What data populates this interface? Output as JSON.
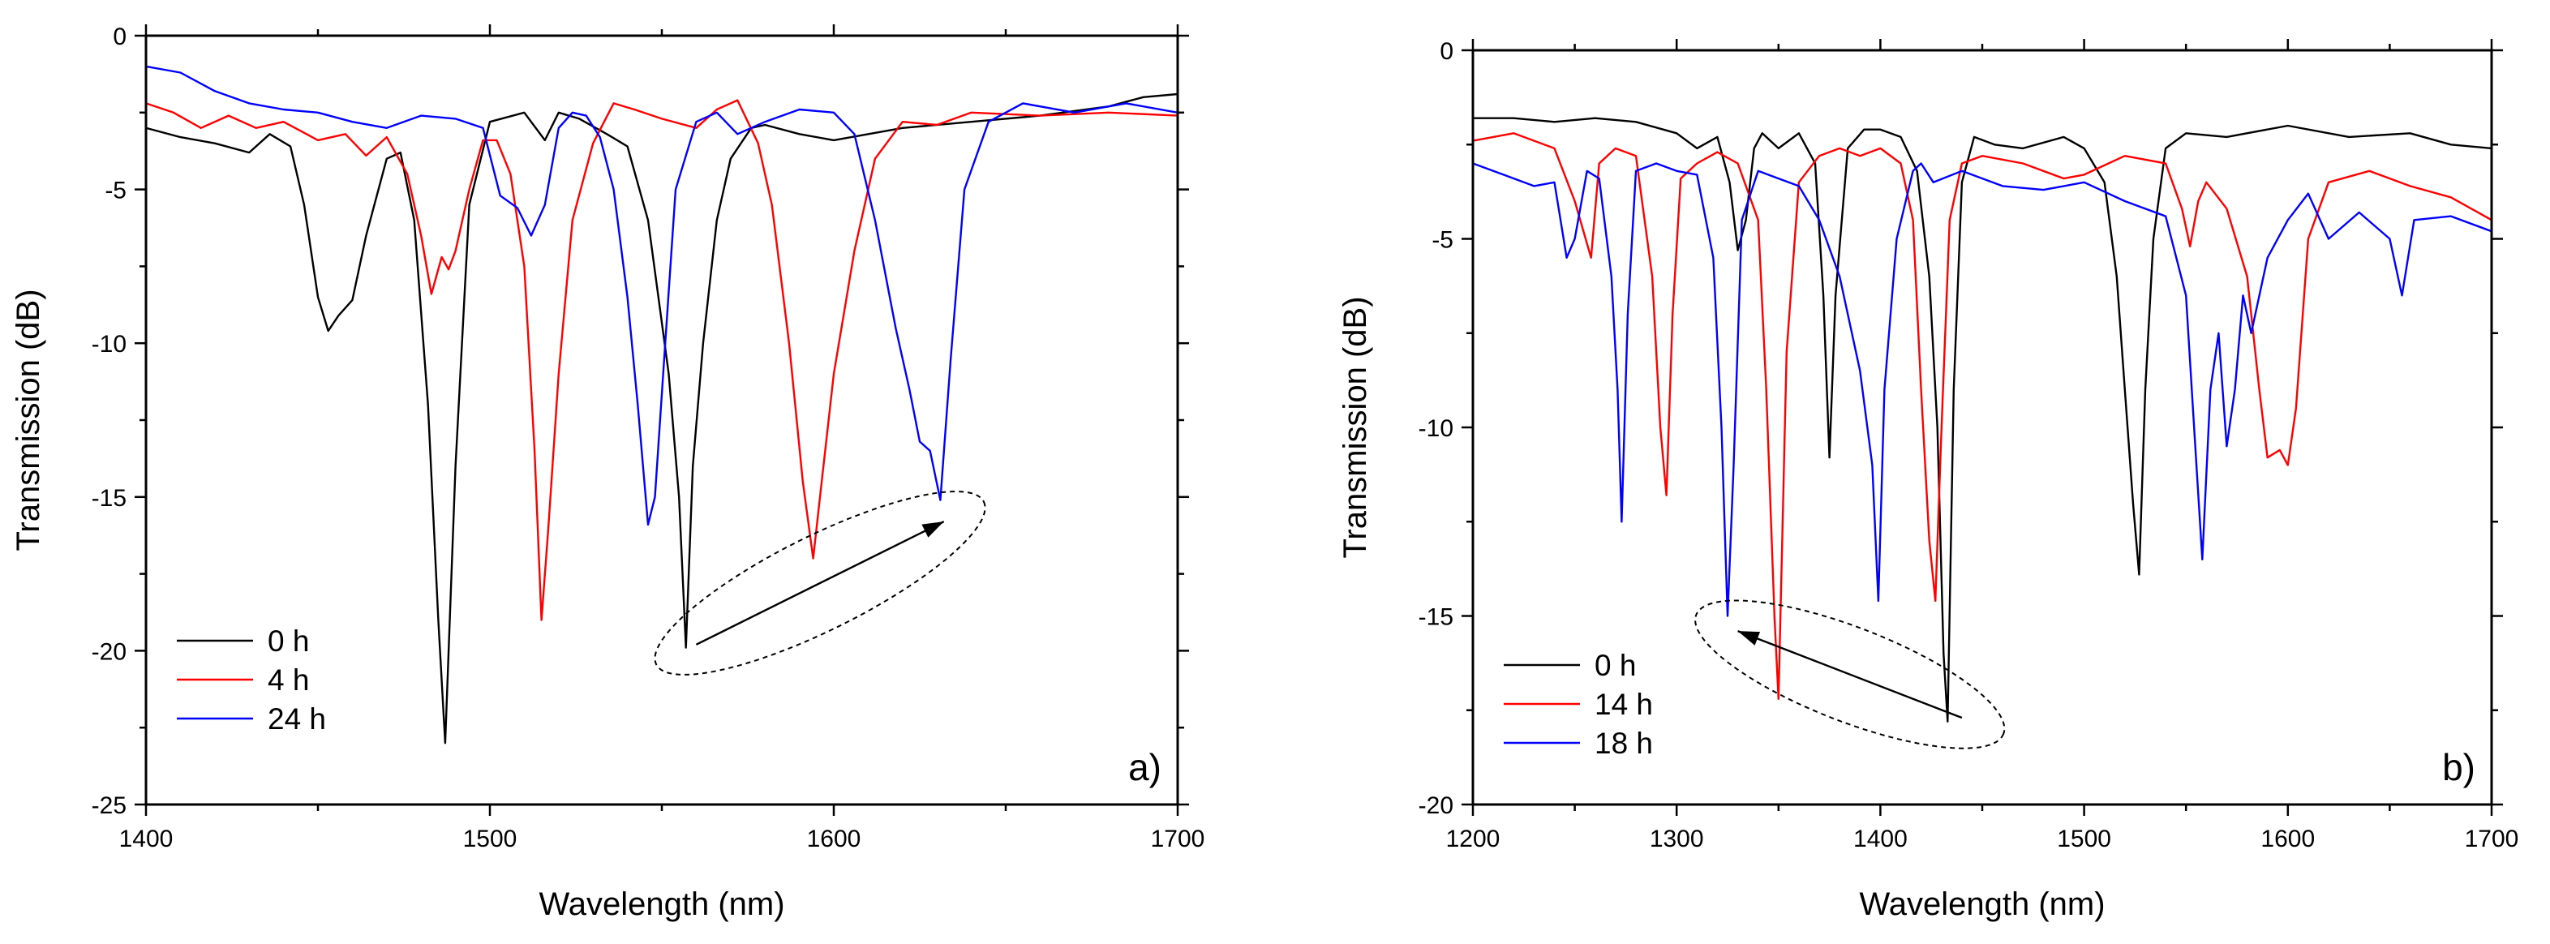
{
  "chart_data": [
    {
      "type": "line",
      "panel_label": "a)",
      "xlabel": "Wavelength (nm)",
      "ylabel": "Transmission (dB)",
      "xlim": [
        1400,
        1700
      ],
      "ylim": [
        -25,
        0
      ],
      "xticks": [
        1400,
        1500,
        1600,
        1700
      ],
      "yticks": [
        0,
        -5,
        -10,
        -15,
        -20,
        -25
      ],
      "xtick_labels": [
        "1400",
        "1500",
        "1600",
        "1700"
      ],
      "ytick_labels": [
        "0",
        "-5",
        "-10",
        "-15",
        "-20",
        "-25"
      ],
      "legend_position": "bottom-left",
      "annotation": {
        "type": "ellipse-arrow",
        "direction": "right",
        "from": [
          1560,
          -19.8
        ],
        "to": [
          1632,
          -15.8
        ]
      },
      "series": [
        {
          "name": "0 h",
          "color": "#000000",
          "x": [
            1400,
            1410,
            1420,
            1430,
            1436,
            1442,
            1446,
            1450,
            1453,
            1456,
            1460,
            1464,
            1470,
            1474,
            1478,
            1482,
            1485,
            1487,
            1490,
            1494,
            1500,
            1510,
            1516,
            1520,
            1526,
            1534,
            1540,
            1546,
            1552,
            1555,
            1557,
            1559,
            1562,
            1566,
            1570,
            1576,
            1580,
            1590,
            1600,
            1620,
            1640,
            1660,
            1680,
            1690,
            1700
          ],
          "y": [
            -3.0,
            -3.3,
            -3.5,
            -3.8,
            -3.2,
            -3.6,
            -5.5,
            -8.5,
            -9.6,
            -9.1,
            -8.6,
            -6.5,
            -4.0,
            -3.8,
            -6.0,
            -12.0,
            -19.0,
            -23.0,
            -14.0,
            -5.5,
            -2.8,
            -2.5,
            -3.4,
            -2.5,
            -2.7,
            -3.2,
            -3.6,
            -6.0,
            -11.0,
            -15.0,
            -19.9,
            -14.0,
            -10.0,
            -6.0,
            -4.0,
            -3.0,
            -2.9,
            -3.2,
            -3.4,
            -3.0,
            -2.8,
            -2.6,
            -2.3,
            -2.0,
            -1.9
          ]
        },
        {
          "name": "4 h",
          "color": "#ff0000",
          "x": [
            1400,
            1408,
            1416,
            1424,
            1432,
            1440,
            1450,
            1458,
            1464,
            1470,
            1476,
            1480,
            1483,
            1486,
            1488,
            1490,
            1494,
            1498,
            1502,
            1506,
            1510,
            1513,
            1515,
            1517,
            1520,
            1524,
            1530,
            1536,
            1542,
            1550,
            1560,
            1566,
            1572,
            1578,
            1582,
            1587,
            1591,
            1594,
            1596,
            1600,
            1606,
            1612,
            1620,
            1630,
            1640,
            1660,
            1680,
            1700
          ],
          "y": [
            -2.2,
            -2.5,
            -3.0,
            -2.6,
            -3.0,
            -2.8,
            -3.4,
            -3.2,
            -3.9,
            -3.3,
            -4.5,
            -6.5,
            -8.4,
            -7.2,
            -7.6,
            -7.0,
            -5.0,
            -3.4,
            -3.4,
            -4.5,
            -7.5,
            -13.5,
            -19.0,
            -16.0,
            -11.0,
            -6.0,
            -3.5,
            -2.2,
            -2.4,
            -2.7,
            -3.0,
            -2.4,
            -2.1,
            -3.5,
            -5.5,
            -10.0,
            -14.5,
            -17.0,
            -15.0,
            -11.0,
            -7.0,
            -4.0,
            -2.8,
            -2.9,
            -2.5,
            -2.6,
            -2.5,
            -2.6
          ]
        },
        {
          "name": "24 h",
          "color": "#0000ff",
          "x": [
            1400,
            1410,
            1420,
            1430,
            1440,
            1450,
            1460,
            1470,
            1480,
            1490,
            1498,
            1503,
            1508,
            1512,
            1516,
            1520,
            1524,
            1528,
            1532,
            1536,
            1540,
            1543,
            1546,
            1548,
            1551,
            1554,
            1560,
            1566,
            1572,
            1580,
            1590,
            1600,
            1606,
            1612,
            1618,
            1622,
            1625,
            1628,
            1631,
            1634,
            1638,
            1645,
            1655,
            1670,
            1685,
            1700
          ],
          "y": [
            -1.0,
            -1.2,
            -1.8,
            -2.2,
            -2.4,
            -2.5,
            -2.8,
            -3.0,
            -2.6,
            -2.7,
            -3.0,
            -5.2,
            -5.6,
            -6.5,
            -5.5,
            -3.0,
            -2.5,
            -2.6,
            -3.3,
            -5.0,
            -8.5,
            -12.0,
            -15.9,
            -15.0,
            -10.0,
            -5.0,
            -2.8,
            -2.5,
            -3.2,
            -2.8,
            -2.4,
            -2.5,
            -3.2,
            -6.0,
            -9.5,
            -11.5,
            -13.2,
            -13.5,
            -15.1,
            -10.5,
            -5.0,
            -2.8,
            -2.2,
            -2.5,
            -2.2,
            -2.5
          ]
        }
      ]
    },
    {
      "type": "line",
      "panel_label": "b)",
      "xlabel": "Wavelength (nm)",
      "ylabel": "Transmission (dB)",
      "xlim": [
        1200,
        1700
      ],
      "ylim": [
        -20,
        0
      ],
      "xticks": [
        1200,
        1300,
        1400,
        1500,
        1600,
        1700
      ],
      "yticks": [
        0,
        -5,
        -10,
        -15,
        -20
      ],
      "xtick_labels": [
        "1200",
        "1300",
        "1400",
        "1500",
        "1600",
        "1700"
      ],
      "ytick_labels": [
        "0",
        "-5",
        "-10",
        "-15",
        "-20"
      ],
      "legend_position": "bottom-left",
      "annotation": {
        "type": "ellipse-arrow",
        "direction": "left",
        "from": [
          1440,
          -17.7
        ],
        "to": [
          1330,
          -15.4
        ]
      },
      "series": [
        {
          "name": "0 h",
          "color": "#000000",
          "x": [
            1200,
            1220,
            1240,
            1260,
            1280,
            1300,
            1310,
            1320,
            1326,
            1330,
            1334,
            1338,
            1342,
            1350,
            1360,
            1368,
            1372,
            1375,
            1378,
            1384,
            1392,
            1400,
            1410,
            1418,
            1424,
            1428,
            1431,
            1433,
            1436,
            1440,
            1446,
            1456,
            1470,
            1490,
            1500,
            1510,
            1516,
            1520,
            1524,
            1527,
            1530,
            1534,
            1540,
            1550,
            1570,
            1600,
            1630,
            1660,
            1680,
            1700
          ],
          "y": [
            -1.8,
            -1.8,
            -1.9,
            -1.8,
            -1.9,
            -2.2,
            -2.6,
            -2.3,
            -3.5,
            -5.3,
            -4.5,
            -2.6,
            -2.2,
            -2.6,
            -2.2,
            -3.0,
            -6.5,
            -10.8,
            -6.5,
            -2.6,
            -2.1,
            -2.1,
            -2.3,
            -3.2,
            -6.0,
            -10.0,
            -16.0,
            -17.8,
            -9.0,
            -3.5,
            -2.3,
            -2.5,
            -2.6,
            -2.3,
            -2.6,
            -3.5,
            -6.0,
            -9.0,
            -12.0,
            -13.9,
            -9.0,
            -5.0,
            -2.6,
            -2.2,
            -2.3,
            -2.0,
            -2.3,
            -2.2,
            -2.5,
            -2.6
          ]
        },
        {
          "name": "14 h",
          "color": "#ff0000",
          "x": [
            1200,
            1220,
            1240,
            1250,
            1258,
            1262,
            1270,
            1280,
            1288,
            1292,
            1295,
            1298,
            1302,
            1310,
            1320,
            1330,
            1340,
            1344,
            1348,
            1350,
            1354,
            1360,
            1370,
            1380,
            1390,
            1400,
            1410,
            1416,
            1420,
            1424,
            1427,
            1430,
            1434,
            1440,
            1450,
            1470,
            1490,
            1500,
            1520,
            1540,
            1548,
            1552,
            1556,
            1560,
            1570,
            1580,
            1586,
            1590,
            1596,
            1600,
            1604,
            1610,
            1620,
            1640,
            1660,
            1680,
            1700
          ],
          "y": [
            -2.4,
            -2.2,
            -2.6,
            -4.0,
            -5.5,
            -3.0,
            -2.6,
            -2.8,
            -6.0,
            -10.0,
            -11.8,
            -7.0,
            -3.4,
            -3.0,
            -2.7,
            -3.0,
            -4.5,
            -9.0,
            -15.0,
            -17.2,
            -8.0,
            -3.5,
            -2.8,
            -2.6,
            -2.8,
            -2.6,
            -3.0,
            -4.5,
            -9.0,
            -13.0,
            -14.6,
            -10.0,
            -4.5,
            -3.0,
            -2.8,
            -3.0,
            -3.4,
            -3.3,
            -2.8,
            -3.0,
            -4.2,
            -5.2,
            -4.0,
            -3.5,
            -4.2,
            -6.0,
            -9.0,
            -10.8,
            -10.6,
            -11.0,
            -9.5,
            -5.0,
            -3.5,
            -3.2,
            -3.6,
            -3.9,
            -4.5
          ]
        },
        {
          "name": "18 h",
          "color": "#0000ff",
          "x": [
            1200,
            1215,
            1230,
            1240,
            1246,
            1250,
            1256,
            1262,
            1268,
            1271,
            1273,
            1276,
            1280,
            1290,
            1300,
            1310,
            1318,
            1322,
            1325,
            1328,
            1332,
            1340,
            1350,
            1360,
            1370,
            1380,
            1390,
            1396,
            1399,
            1402,
            1408,
            1416,
            1420,
            1426,
            1440,
            1460,
            1480,
            1500,
            1520,
            1540,
            1550,
            1554,
            1558,
            1562,
            1566,
            1570,
            1574,
            1578,
            1582,
            1590,
            1600,
            1610,
            1620,
            1635,
            1650,
            1656,
            1662,
            1680,
            1700
          ],
          "y": [
            -3.0,
            -3.3,
            -3.6,
            -3.5,
            -5.5,
            -5.0,
            -3.2,
            -3.4,
            -6.0,
            -9.0,
            -12.5,
            -7.0,
            -3.2,
            -3.0,
            -3.2,
            -3.3,
            -5.5,
            -10.0,
            -15.0,
            -11.0,
            -4.5,
            -3.2,
            -3.4,
            -3.6,
            -4.5,
            -6.0,
            -8.5,
            -11.0,
            -14.6,
            -9.0,
            -5.0,
            -3.2,
            -3.0,
            -3.5,
            -3.2,
            -3.6,
            -3.7,
            -3.5,
            -4.0,
            -4.4,
            -6.5,
            -10.0,
            -13.5,
            -9.0,
            -7.5,
            -10.5,
            -9.0,
            -6.5,
            -7.5,
            -5.5,
            -4.5,
            -3.8,
            -5.0,
            -4.3,
            -5.0,
            -6.5,
            -4.5,
            -4.4,
            -4.8
          ]
        }
      ]
    }
  ]
}
